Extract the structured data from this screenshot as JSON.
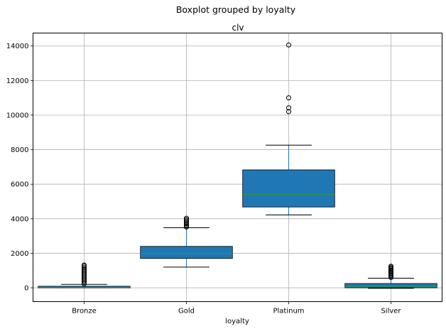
{
  "chart_data": {
    "type": "box",
    "suptitle": "Boxplot grouped by loyalty",
    "title": "clv",
    "xlabel": "loyalty",
    "ylabel": "",
    "ylim": [
      -800,
      14750
    ],
    "yticks": [
      0,
      2000,
      4000,
      6000,
      8000,
      10000,
      12000,
      14000
    ],
    "grid": true,
    "box_color": "#1f77b4",
    "median_color": "#2ca02c",
    "categories": [
      "Bronze",
      "Gold",
      "Platinum",
      "Silver"
    ],
    "boxes": [
      {
        "category": "Bronze",
        "whisker_low": 0,
        "q1": 0,
        "median": 30,
        "q3": 90,
        "whisker_high": 200,
        "outliers": [
          230,
          300,
          380,
          460,
          540,
          620,
          700,
          780,
          860,
          940,
          1020,
          1100,
          1180,
          1260,
          1320
        ]
      },
      {
        "category": "Gold",
        "whisker_low": 1200,
        "q1": 1700,
        "median": 1990,
        "q3": 2400,
        "whisker_high": 3480,
        "outliers": [
          3520,
          3580,
          3650,
          3720,
          3800,
          3880,
          3950,
          4030
        ]
      },
      {
        "category": "Platinum",
        "whisker_low": 4220,
        "q1": 4680,
        "median": 5400,
        "q3": 6830,
        "whisker_high": 8260,
        "outliers": [
          10200,
          10420,
          11000,
          14060
        ]
      },
      {
        "category": "Silver",
        "whisker_low": -30,
        "q1": 0,
        "median": 90,
        "q3": 250,
        "whisker_high": 560,
        "outliers": [
          600,
          660,
          720,
          780,
          840,
          900,
          960,
          1020,
          1080,
          1140,
          1200,
          1250
        ]
      }
    ]
  }
}
